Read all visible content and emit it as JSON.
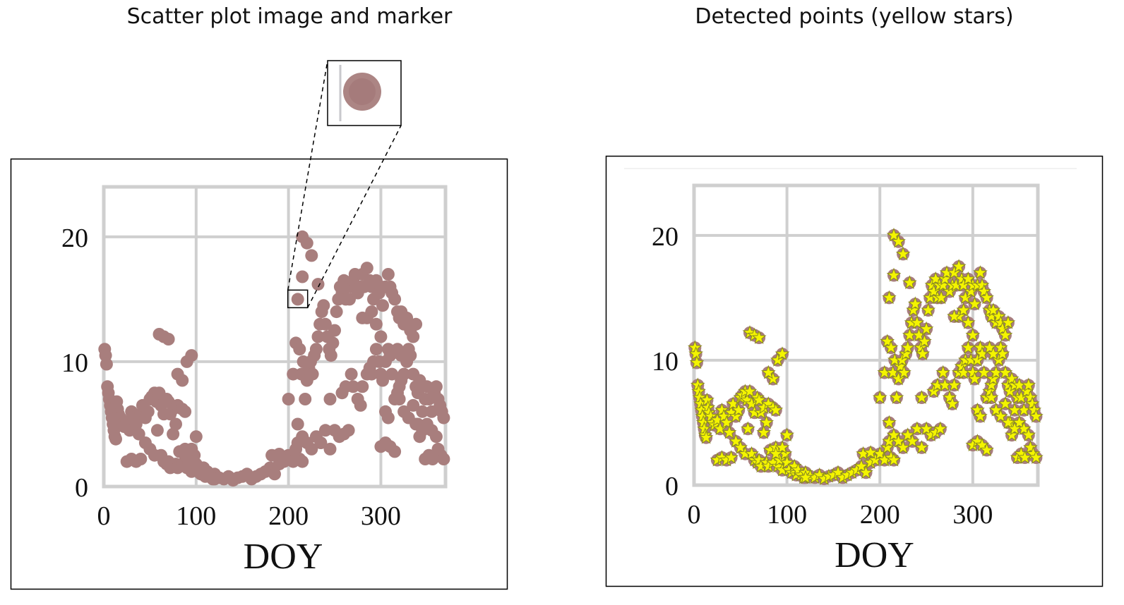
{
  "panels": {
    "left_title": "Scatter plot image and marker",
    "right_title": "Detected points (yellow stars)"
  },
  "colors": {
    "marker": "#a87e7d",
    "star_fill": "#f4f400",
    "star_stroke": "#8a8a20",
    "grid": "#cfcfcf"
  },
  "chart_data": [
    {
      "type": "scatter",
      "title": "Scatter plot image and marker",
      "xlabel": "DOY",
      "ylabel": "",
      "xlim": [
        0,
        370
      ],
      "ylim": [
        0,
        24
      ],
      "xticks": [
        "0",
        "100",
        "200",
        "300"
      ],
      "xtick_values": [
        0,
        100,
        200,
        300
      ],
      "yticks": [
        "0",
        "10",
        "20"
      ],
      "ytick_values": [
        0,
        10,
        20
      ],
      "grid": true,
      "marker": "circle",
      "zoom_inset_point": [
        210,
        15
      ],
      "points": [
        [
          1,
          11
        ],
        [
          2,
          10.5
        ],
        [
          3,
          9.8
        ],
        [
          4,
          8
        ],
        [
          5,
          7.5
        ],
        [
          6,
          7
        ],
        [
          7,
          6.5
        ],
        [
          8,
          6
        ],
        [
          9,
          5.5
        ],
        [
          10,
          5
        ],
        [
          11,
          4.5
        ],
        [
          12,
          4
        ],
        [
          13,
          3.8
        ],
        [
          14,
          6.8
        ],
        [
          15,
          6.2
        ],
        [
          16,
          5.8
        ],
        [
          18,
          5.5
        ],
        [
          20,
          5
        ],
        [
          22,
          4.8
        ],
        [
          25,
          5.2
        ],
        [
          28,
          4.5
        ],
        [
          30,
          6
        ],
        [
          32,
          5.5
        ],
        [
          35,
          5
        ],
        [
          38,
          4.2
        ],
        [
          40,
          5.8
        ],
        [
          42,
          6.5
        ],
        [
          45,
          5.5
        ],
        [
          48,
          6
        ],
        [
          50,
          7
        ],
        [
          52,
          7.2
        ],
        [
          55,
          7.5
        ],
        [
          57,
          6.8
        ],
        [
          60,
          7.5
        ],
        [
          62,
          6.5
        ],
        [
          65,
          5.8
        ],
        [
          68,
          7
        ],
        [
          70,
          6.8
        ],
        [
          72,
          5.8
        ],
        [
          75,
          6.2
        ],
        [
          78,
          5
        ],
        [
          80,
          6.5
        ],
        [
          85,
          6.2
        ],
        [
          88,
          6
        ],
        [
          60,
          12.2
        ],
        [
          65,
          12
        ],
        [
          70,
          11.8
        ],
        [
          90,
          10
        ],
        [
          95,
          10.5
        ],
        [
          85,
          8.5
        ],
        [
          80,
          9
        ],
        [
          25,
          2
        ],
        [
          30,
          2.2
        ],
        [
          35,
          2
        ],
        [
          40,
          2.2
        ],
        [
          45,
          3.5
        ],
        [
          50,
          3
        ],
        [
          55,
          2.5
        ],
        [
          58,
          4.5
        ],
        [
          62,
          2.5
        ],
        [
          65,
          2
        ],
        [
          68,
          1.8
        ],
        [
          70,
          2
        ],
        [
          72,
          1.5
        ],
        [
          75,
          4.2
        ],
        [
          78,
          1.8
        ],
        [
          80,
          1.5
        ],
        [
          82,
          2.8
        ],
        [
          85,
          1.8
        ],
        [
          88,
          3
        ],
        [
          90,
          1.5
        ],
        [
          92,
          2
        ],
        [
          95,
          1.2
        ],
        [
          98,
          2.5
        ],
        [
          100,
          1.8
        ],
        [
          102,
          1.2
        ],
        [
          105,
          1
        ],
        [
          108,
          1.5
        ],
        [
          110,
          0.8
        ],
        [
          112,
          1.2
        ],
        [
          115,
          0.8
        ],
        [
          118,
          0.6
        ],
        [
          120,
          1
        ],
        [
          125,
          0.7
        ],
        [
          130,
          0.6
        ],
        [
          135,
          0.8
        ],
        [
          140,
          0.5
        ],
        [
          145,
          0.7
        ],
        [
          150,
          0.8
        ],
        [
          155,
          1
        ],
        [
          160,
          0.6
        ],
        [
          165,
          0.8
        ],
        [
          170,
          1
        ],
        [
          175,
          1.2
        ],
        [
          180,
          1.5
        ],
        [
          185,
          1
        ],
        [
          190,
          1.8
        ],
        [
          195,
          2
        ],
        [
          200,
          2.5
        ],
        [
          205,
          2
        ],
        [
          208,
          3
        ],
        [
          210,
          3.5
        ],
        [
          212,
          2.2
        ],
        [
          215,
          2
        ],
        [
          100,
          4
        ],
        [
          95,
          3
        ],
        [
          88,
          2.5
        ],
        [
          120,
          0.6
        ],
        [
          182,
          2.5
        ],
        [
          190,
          2.6
        ],
        [
          200,
          7
        ],
        [
          205,
          9
        ],
        [
          208,
          11.5
        ],
        [
          210,
          15
        ],
        [
          212,
          11
        ],
        [
          214,
          9
        ],
        [
          216,
          10
        ],
        [
          218,
          7
        ],
        [
          220,
          8.5
        ],
        [
          222,
          9.5
        ],
        [
          224,
          10
        ],
        [
          226,
          9
        ],
        [
          228,
          10.5
        ],
        [
          230,
          11
        ],
        [
          232,
          12
        ],
        [
          234,
          13
        ],
        [
          236,
          14
        ],
        [
          238,
          14.5
        ],
        [
          240,
          13
        ],
        [
          242,
          12
        ],
        [
          244,
          11
        ],
        [
          246,
          10.5
        ],
        [
          248,
          11.5
        ],
        [
          250,
          12.5
        ],
        [
          252,
          14
        ],
        [
          254,
          15
        ],
        [
          256,
          16
        ],
        [
          258,
          15.5
        ],
        [
          260,
          16.5
        ],
        [
          262,
          15
        ],
        [
          264,
          16
        ],
        [
          266,
          15
        ],
        [
          268,
          16
        ],
        [
          270,
          16.5
        ],
        [
          272,
          17
        ],
        [
          275,
          15.5
        ],
        [
          278,
          16
        ],
        [
          280,
          17
        ],
        [
          282,
          16
        ],
        [
          285,
          17.5
        ],
        [
          288,
          16.5
        ],
        [
          290,
          16
        ],
        [
          292,
          15
        ],
        [
          295,
          16.5
        ],
        [
          298,
          15.5
        ],
        [
          300,
          16
        ],
        [
          302,
          14.5
        ],
        [
          305,
          16
        ],
        [
          308,
          17
        ],
        [
          310,
          16
        ],
        [
          312,
          15.5
        ],
        [
          315,
          15
        ],
        [
          318,
          14
        ],
        [
          320,
          13.5
        ],
        [
          322,
          14
        ],
        [
          325,
          13
        ],
        [
          328,
          13.5
        ],
        [
          330,
          13
        ],
        [
          332,
          12.5
        ],
        [
          335,
          12
        ],
        [
          338,
          13
        ],
        [
          215,
          20
        ],
        [
          220,
          19.5
        ],
        [
          225,
          18.5
        ],
        [
          215,
          16.8
        ],
        [
          232,
          16.2
        ],
        [
          210,
          5
        ],
        [
          215,
          4
        ],
        [
          220,
          3.5
        ],
        [
          225,
          3
        ],
        [
          230,
          4
        ],
        [
          235,
          3.5
        ],
        [
          240,
          4.5
        ],
        [
          245,
          3
        ],
        [
          250,
          4.5
        ],
        [
          255,
          4
        ],
        [
          260,
          4.2
        ],
        [
          265,
          4.5
        ],
        [
          245,
          7
        ],
        [
          258,
          7.5
        ],
        [
          262,
          8
        ],
        [
          268,
          9
        ],
        [
          270,
          8
        ],
        [
          275,
          7
        ],
        [
          278,
          6.5
        ],
        [
          280,
          8
        ],
        [
          285,
          9
        ],
        [
          288,
          9.5
        ],
        [
          290,
          9
        ],
        [
          292,
          10
        ],
        [
          295,
          11
        ],
        [
          298,
          10
        ],
        [
          300,
          9
        ],
        [
          302,
          8.5
        ],
        [
          305,
          10
        ],
        [
          308,
          11
        ],
        [
          310,
          10.5
        ],
        [
          312,
          9
        ],
        [
          315,
          7
        ],
        [
          318,
          7.5
        ],
        [
          320,
          8
        ],
        [
          322,
          8.5
        ],
        [
          325,
          9
        ],
        [
          328,
          10
        ],
        [
          330,
          11
        ],
        [
          332,
          10.5
        ],
        [
          335,
          9
        ],
        [
          338,
          8
        ],
        [
          340,
          7.5
        ],
        [
          342,
          8.5
        ],
        [
          345,
          8
        ],
        [
          348,
          7
        ],
        [
          350,
          8
        ],
        [
          352,
          7
        ],
        [
          355,
          6
        ],
        [
          358,
          7.5
        ],
        [
          360,
          8
        ],
        [
          362,
          7
        ],
        [
          364,
          6.5
        ],
        [
          366,
          6
        ],
        [
          368,
          5.5
        ],
        [
          340,
          5
        ],
        [
          345,
          6
        ],
        [
          350,
          5
        ],
        [
          355,
          4.5
        ],
        [
          360,
          4
        ],
        [
          362,
          3
        ],
        [
          365,
          2.5
        ],
        [
          368,
          2.2
        ],
        [
          348,
          2.2
        ],
        [
          352,
          2.5
        ],
        [
          356,
          2.2
        ],
        [
          300,
          3.2
        ],
        [
          305,
          3.5
        ],
        [
          310,
          3.2
        ],
        [
          315,
          2.8
        ],
        [
          320,
          7
        ],
        [
          325,
          6
        ],
        [
          330,
          5.5
        ],
        [
          335,
          6.5
        ],
        [
          338,
          5
        ],
        [
          342,
          4
        ],
        [
          345,
          4.5
        ],
        [
          318,
          11
        ],
        [
          322,
          10.5
        ],
        [
          305,
          6
        ],
        [
          308,
          5.5
        ],
        [
          300,
          12
        ],
        [
          295,
          13
        ],
        [
          290,
          14
        ],
        [
          285,
          13.5
        ],
        [
          280,
          13.5
        ]
      ]
    },
    {
      "type": "scatter",
      "title": "Detected points (yellow stars)",
      "xlabel": "DOY",
      "ylabel": "",
      "xlim": [
        0,
        370
      ],
      "ylim": [
        0,
        24
      ],
      "xticks": [
        "0",
        "100",
        "200",
        "300"
      ],
      "xtick_values": [
        0,
        100,
        200,
        300
      ],
      "yticks": [
        "0",
        "10",
        "20"
      ],
      "ytick_values": [
        0,
        10,
        20
      ],
      "grid": true,
      "marker": "star",
      "same_points_as": 0
    }
  ]
}
